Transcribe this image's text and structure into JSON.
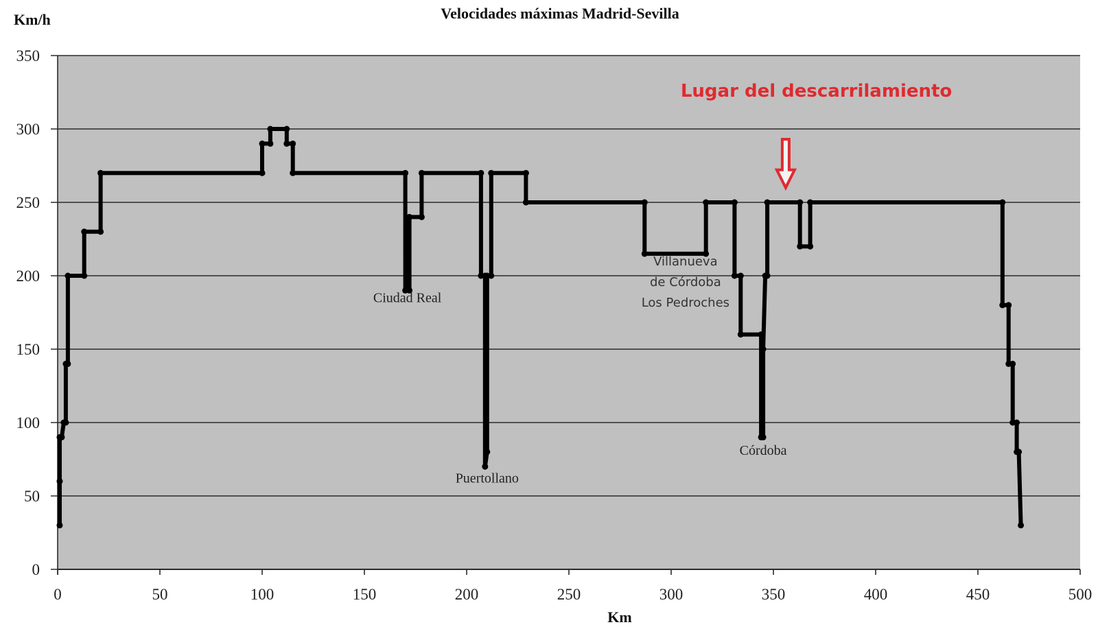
{
  "chart_data": {
    "type": "line",
    "step": true,
    "title": "Velocidades máximas Madrid-Sevilla",
    "xlabel": "Km",
    "ylabel": "Km/h",
    "xlim": [
      0,
      500
    ],
    "ylim": [
      0,
      350
    ],
    "x_ticks": [
      0,
      50,
      100,
      150,
      200,
      250,
      300,
      350,
      400,
      450,
      500
    ],
    "y_ticks": [
      0,
      50,
      100,
      150,
      200,
      250,
      300,
      350
    ],
    "grid": {
      "horizontal": true,
      "vertical": false
    },
    "plot_background": "#c0c0c0",
    "line_color": "#000000",
    "series": [
      {
        "name": "Velocidad máxima",
        "points": [
          [
            1,
            30
          ],
          [
            1,
            60
          ],
          [
            1,
            90
          ],
          [
            2,
            90
          ],
          [
            3,
            100
          ],
          [
            4,
            100
          ],
          [
            4,
            140
          ],
          [
            5,
            140
          ],
          [
            5,
            200
          ],
          [
            13,
            200
          ],
          [
            13,
            230
          ],
          [
            21,
            230
          ],
          [
            21,
            270
          ],
          [
            100,
            270
          ],
          [
            100,
            290
          ],
          [
            104,
            290
          ],
          [
            104,
            300
          ],
          [
            112,
            300
          ],
          [
            112,
            290
          ],
          [
            115,
            290
          ],
          [
            115,
            270
          ],
          [
            170,
            270
          ],
          [
            170,
            190
          ],
          [
            172,
            190
          ],
          [
            172,
            240
          ],
          [
            178,
            240
          ],
          [
            178,
            270
          ],
          [
            207,
            270
          ],
          [
            207,
            200
          ],
          [
            209,
            200
          ],
          [
            209,
            70
          ],
          [
            210,
            80
          ],
          [
            210,
            200
          ],
          [
            212,
            200
          ],
          [
            212,
            270
          ],
          [
            229,
            270
          ],
          [
            229,
            250
          ],
          [
            287,
            250
          ],
          [
            287,
            215
          ],
          [
            317,
            215
          ],
          [
            317,
            250
          ],
          [
            331,
            250
          ],
          [
            331,
            200
          ],
          [
            334,
            200
          ],
          [
            334,
            160
          ],
          [
            344,
            160
          ],
          [
            344,
            90
          ],
          [
            345,
            90
          ],
          [
            345,
            150
          ],
          [
            346,
            200
          ],
          [
            347,
            200
          ],
          [
            347,
            250
          ],
          [
            363,
            250
          ],
          [
            363,
            220
          ],
          [
            368,
            220
          ],
          [
            368,
            250
          ],
          [
            462,
            250
          ],
          [
            462,
            180
          ],
          [
            465,
            180
          ],
          [
            465,
            140
          ],
          [
            467,
            140
          ],
          [
            467,
            100
          ],
          [
            469,
            100
          ],
          [
            469,
            80
          ],
          [
            470,
            80
          ],
          [
            471,
            30
          ]
        ]
      }
    ],
    "annotations": [
      {
        "text": "Ciudad Real",
        "x": 171,
        "y": 182,
        "style": "serif"
      },
      {
        "text": "Puertollano",
        "x": 210,
        "y": 59,
        "style": "serif"
      },
      {
        "text": "Villanueva",
        "x": 307,
        "y": 207,
        "style": "sans"
      },
      {
        "text": "de Córdoba",
        "x": 307,
        "y": 193,
        "style": "sans"
      },
      {
        "text": "Los Pedroches",
        "x": 307,
        "y": 179,
        "style": "sans"
      },
      {
        "text": "Córdoba",
        "x": 345,
        "y": 78,
        "style": "serif"
      },
      {
        "text": "Lugar del descarrilamiento",
        "x": 371,
        "y": 322,
        "style": "red"
      }
    ],
    "marker": {
      "type": "down-arrow-outline",
      "x": 356,
      "y_top": 293,
      "y_bottom": 260,
      "color": "#e02a30"
    }
  }
}
